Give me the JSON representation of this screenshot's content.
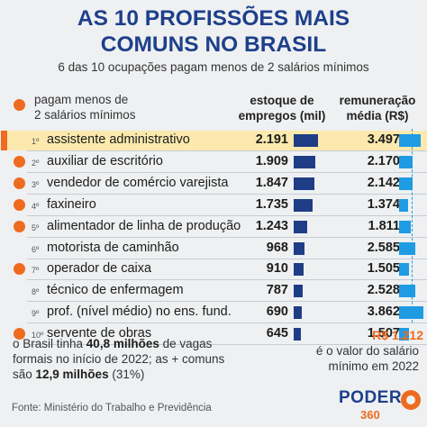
{
  "header": {
    "title_line1": "AS 10 PROFISSÕES MAIS",
    "title_line2": "COMUNS NO BRASIL",
    "subtitle": "6 das 10 ocupações pagam menos de 2 salários mínimos"
  },
  "legend": {
    "label": "pagam menos de 2 salários mínimos",
    "line1": "pagam menos de",
    "line2": "2 salários mínimos",
    "color": "#ee6b1f"
  },
  "columns": {
    "stock_line1": "estoque de",
    "stock_line2": "empregos (mil)",
    "pay_line1": "remuneração",
    "pay_line2": "média (R$)"
  },
  "chart_data": {
    "type": "table",
    "series": [
      {
        "name": "estoque de empregos (mil)",
        "values": [
          2191,
          1909,
          1847,
          1735,
          1243,
          968,
          910,
          787,
          690,
          645
        ]
      },
      {
        "name": "remuneração média (R$)",
        "values": [
          3497,
          2170,
          2142,
          1374,
          1811,
          2585,
          1505,
          2528,
          3862,
          1507
        ]
      }
    ],
    "categories": [
      "assistente administrativo",
      "auxiliar de escritório",
      "vendedor de comércio varejista",
      "faxineiro",
      "alimentador de linha de produção",
      "motorista de caminhão",
      "operador de caixa",
      "técnico de enfermagem",
      "prof. (nível médio) no ens. fund.",
      "servente de obras"
    ],
    "minimum_wage": 1212,
    "rows": [
      {
        "rank": "1º",
        "name": "assistente administrativo",
        "stock": "2.191",
        "stock_value": 2191,
        "pay": "3.497",
        "pay_value": 3497,
        "below_2_min": false,
        "highlighted": true
      },
      {
        "rank": "2º",
        "name": "auxiliar de escritório",
        "stock": "1.909",
        "stock_value": 1909,
        "pay": "2.170",
        "pay_value": 2170,
        "below_2_min": true,
        "highlighted": false
      },
      {
        "rank": "3º",
        "name": "vendedor de comércio varejista",
        "stock": "1.847",
        "stock_value": 1847,
        "pay": "2.142",
        "pay_value": 2142,
        "below_2_min": true,
        "highlighted": false
      },
      {
        "rank": "4º",
        "name": "faxineiro",
        "stock": "1.735",
        "stock_value": 1735,
        "pay": "1.374",
        "pay_value": 1374,
        "below_2_min": true,
        "highlighted": false
      },
      {
        "rank": "5º",
        "name": "alimentador de linha de produção",
        "stock": "1.243",
        "stock_value": 1243,
        "pay": "1.811",
        "pay_value": 1811,
        "below_2_min": true,
        "highlighted": false
      },
      {
        "rank": "6º",
        "name": "motorista de caminhão",
        "stock": "968",
        "stock_value": 968,
        "pay": "2.585",
        "pay_value": 2585,
        "below_2_min": false,
        "highlighted": false
      },
      {
        "rank": "7º",
        "name": "operador de caixa",
        "stock": "910",
        "stock_value": 910,
        "pay": "1.505",
        "pay_value": 1505,
        "below_2_min": true,
        "highlighted": false
      },
      {
        "rank": "8º",
        "name": "técnico de enfermagem",
        "stock": "787",
        "stock_value": 787,
        "pay": "2.528",
        "pay_value": 2528,
        "below_2_min": false,
        "highlighted": false
      },
      {
        "rank": "9º",
        "name": "prof. (nível médio) no ens. fund.",
        "stock": "690",
        "stock_value": 690,
        "pay": "3.862",
        "pay_value": 3862,
        "below_2_min": false,
        "highlighted": false
      },
      {
        "rank": "10º",
        "name": "servente de obras",
        "stock": "645",
        "stock_value": 645,
        "pay": "1.507",
        "pay_value": 1507,
        "below_2_min": true,
        "highlighted": false
      }
    ]
  },
  "footer": {
    "note_a": "o Brasil tinha ",
    "note_b": "40,8 milhões",
    "note_c": " de vagas",
    "note_d": "formais no início de 2022; as + comuns",
    "note_e": "são ",
    "note_f": "12,9 milhões",
    "note_g": " (31%)",
    "min_wage_value": "R$ 1.212",
    "min_wage_line1": "é o valor do salário",
    "min_wage_line2": "mínimo em 2022",
    "source": "Fonte: Ministério do Trabalho e Previdência"
  },
  "logo": {
    "word": "PODER",
    "sub": "360"
  },
  "colors": {
    "title": "#1e3f8a",
    "stock_bar": "#1f3d85",
    "pay_bar": "#1f9be4",
    "accent": "#ee6b1f",
    "highlight_row": "#fbe9ae"
  }
}
